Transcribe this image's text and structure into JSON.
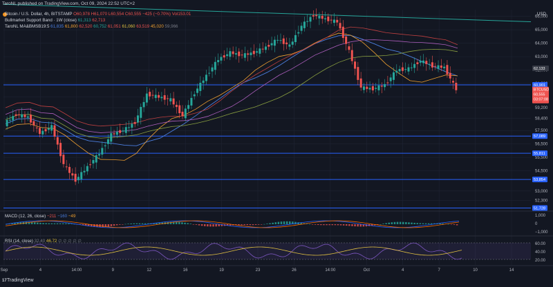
{
  "publish_line": "TaroNL published on TradingView.com, Oct 09, 2024 22:52 UTC+2",
  "symbol": {
    "title": "Bitcoin / U.S. Dollar, 4h, BITSTAMP",
    "o": "O60,978",
    "h": "H61,070",
    "l": "L60,554",
    "c": "C60,555",
    "change": "−425 (−0.70%)",
    "vol": "Vol153.01"
  },
  "indicator_bmsb": {
    "name": "Bullmarket Support Band · 1W (close)",
    "v1": "61,313",
    "v2": "62,713"
  },
  "indicator_ma": {
    "name": "TaroNL MA&BMSB19:5",
    "values": [
      "61,835",
      "61,800",
      "62,520",
      "60,752",
      "61,051",
      "61,060",
      "63,519",
      "45,020",
      "59,966"
    ]
  },
  "macd": {
    "label": "MACD (12, 26, close)",
    "v1": "−211",
    "v2": "−160",
    "v3": "−49"
  },
  "rsi": {
    "label": "RSI (14, close)",
    "v1": "32.40",
    "v2": "46.72",
    "dots": "∅ ∅ ∅ ∅ ∅"
  },
  "currency": "USD",
  "brand": "TradingView",
  "brand_logo": "17",
  "colors": {
    "up": "#26a69a",
    "down": "#ef5350",
    "grid": "#1f2433",
    "bg": "#131722",
    "hline": "#2962ff"
  },
  "chart_data": {
    "type": "candlestick",
    "timeframe": "4h",
    "y_ticks": [
      52300,
      53000,
      54500,
      55500,
      56500,
      57500,
      58400,
      59200,
      60000,
      61000,
      62000,
      63000,
      64000,
      65000,
      66000
    ],
    "y_tick_labels": [
      "52,300",
      "53,000",
      "54,500",
      "55,500",
      "56,500",
      "57,500",
      "58,400",
      "59,200",
      "60,000",
      "61,000",
      "62,000",
      "63,000",
      "64,000",
      "65,000",
      "66,000"
    ],
    "ylim": [
      51500,
      66500
    ],
    "x_tick_labels": [
      "Sep",
      "4",
      "14:00",
      "9",
      "12",
      "16",
      "19",
      "23",
      "26",
      "14:00",
      "Oct",
      "4",
      "7",
      "10",
      "14"
    ],
    "support_levels": [
      {
        "value": 60901,
        "label": "60,901"
      },
      {
        "value": 57089,
        "label": "57,089"
      },
      {
        "value": 55811,
        "label": "55,811"
      },
      {
        "value": 53854,
        "label": "53,854"
      },
      {
        "value": 51728,
        "label": "51,728"
      }
    ],
    "price_tags": [
      {
        "value": 62133,
        "label": "62,133",
        "color": "#363a45"
      },
      {
        "value": 60555,
        "label": "BTCUSD\n60,555\n03:07:08",
        "color": "#ef5350"
      }
    ],
    "price_path": [
      {
        "x": "Sep 1",
        "y": 58000
      },
      {
        "x": "Sep 2",
        "y": 58700
      },
      {
        "x": "Sep 3",
        "y": 58500
      },
      {
        "x": "Sep 4",
        "y": 57300
      },
      {
        "x": "Sep 5",
        "y": 57800
      },
      {
        "x": "Sep 6",
        "y": 55000
      },
      {
        "x": "Sep 7",
        "y": 53800
      },
      {
        "x": "Sep 8",
        "y": 54800
      },
      {
        "x": "Sep 9",
        "y": 55800
      },
      {
        "x": "Sep 10",
        "y": 57200
      },
      {
        "x": "Sep 11",
        "y": 57500
      },
      {
        "x": "Sep 12",
        "y": 58100
      },
      {
        "x": "Sep 13",
        "y": 60200
      },
      {
        "x": "Sep 14",
        "y": 60000
      },
      {
        "x": "Sep 15",
        "y": 59800
      },
      {
        "x": "Sep 16",
        "y": 58600
      },
      {
        "x": "Sep 17",
        "y": 60300
      },
      {
        "x": "Sep 18",
        "y": 61600
      },
      {
        "x": "Sep 19",
        "y": 62800
      },
      {
        "x": "Sep 20",
        "y": 63300
      },
      {
        "x": "Sep 21",
        "y": 63100
      },
      {
        "x": "Sep 22",
        "y": 63300
      },
      {
        "x": "Sep 23",
        "y": 63700
      },
      {
        "x": "Sep 24",
        "y": 64300
      },
      {
        "x": "Sep 25",
        "y": 63800
      },
      {
        "x": "Sep 26",
        "y": 65300
      },
      {
        "x": "Sep 27",
        "y": 66100
      },
      {
        "x": "Sep 28",
        "y": 65800
      },
      {
        "x": "Sep 29",
        "y": 65600
      },
      {
        "x": "Sep 30",
        "y": 63400
      },
      {
        "x": "Oct 1",
        "y": 60700
      },
      {
        "x": "Oct 2",
        "y": 60600
      },
      {
        "x": "Oct 3",
        "y": 60900
      },
      {
        "x": "Oct 4",
        "y": 62000
      },
      {
        "x": "Oct 5",
        "y": 62100
      },
      {
        "x": "Oct 6",
        "y": 62700
      },
      {
        "x": "Oct 7",
        "y": 62300
      },
      {
        "x": "Oct 8",
        "y": 62200
      },
      {
        "x": "Oct 9",
        "y": 60555
      }
    ],
    "macd_ticks": [
      "1,000",
      "0",
      "−1,000"
    ],
    "rsi_ticks": [
      "60.00",
      "40.00",
      "20.00"
    ]
  }
}
